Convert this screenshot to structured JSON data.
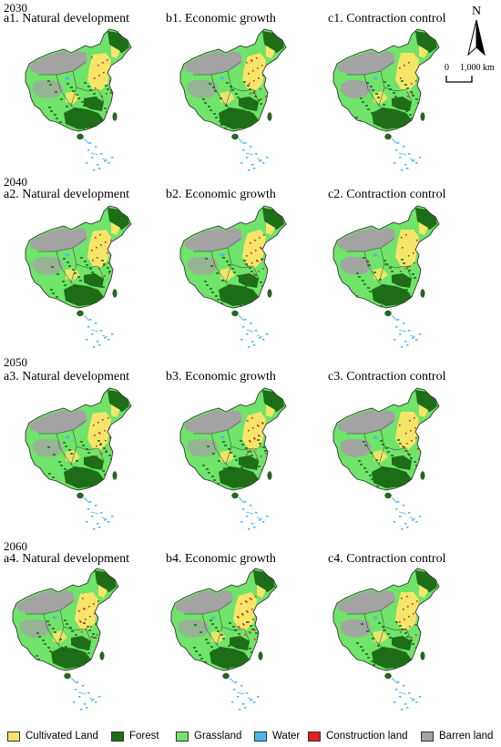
{
  "rows": [
    {
      "year": "2030",
      "panels": [
        "a1. Natural development",
        "b1. Economic growth",
        "c1. Contraction control"
      ]
    },
    {
      "year": "2040",
      "panels": [
        "a2. Natural development",
        "b2. Economic growth",
        "c2. Contraction control"
      ]
    },
    {
      "year": "2050",
      "panels": [
        "a3. Natural development",
        "b3. Economic growth",
        "c3. Contraction control"
      ]
    },
    {
      "year": "2060",
      "panels": [
        "a4. Natural development",
        "b4. Economic growth",
        "c4. Contraction control"
      ]
    }
  ],
  "north_arrow": {
    "label": "N"
  },
  "scale_bar": {
    "zero": "0",
    "max": "1,000 km"
  },
  "legend": [
    {
      "label": "Cultivated Land",
      "color": "#f5e66a"
    },
    {
      "label": "Forest",
      "color": "#1d6e16"
    },
    {
      "label": "Grassland",
      "color": "#6fe36a"
    },
    {
      "label": "Water",
      "color": "#4fb6ee"
    },
    {
      "label": "Construction land",
      "color": "#e02020"
    },
    {
      "label": "Barren land",
      "color": "#a3a3a3"
    }
  ],
  "colors": {
    "grassland": "#6fe36a",
    "forest": "#1d6e16",
    "cultivated": "#f5e66a",
    "water": "#4fb6ee",
    "construction": "#e02020",
    "barren": "#a3a3a3",
    "boundary": "#333333"
  }
}
